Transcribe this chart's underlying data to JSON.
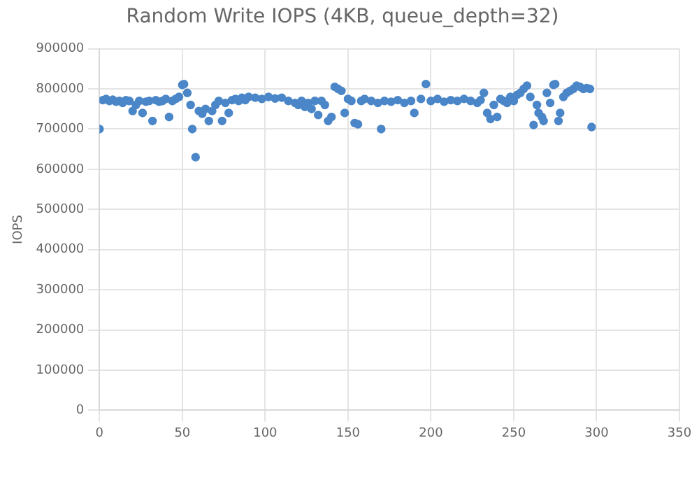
{
  "chart_data": {
    "type": "scatter",
    "title": "Random Write IOPS (4KB, queue_depth=32)",
    "ylabel": "IOPS",
    "series": [
      {
        "color": "#4a86c8",
        "x": [
          0,
          2,
          4,
          6,
          8,
          10,
          12,
          14,
          16,
          18,
          20,
          22,
          24,
          26,
          28,
          30,
          32,
          34,
          36,
          38,
          40,
          42,
          44,
          46,
          48,
          50,
          51,
          53,
          55,
          56,
          58,
          60,
          62,
          64,
          66,
          68,
          70,
          72,
          74,
          76,
          78,
          80,
          82,
          84,
          86,
          88,
          90,
          94,
          98,
          102,
          106,
          110,
          114,
          118,
          120,
          122,
          124,
          126,
          128,
          130,
          132,
          134,
          136,
          138,
          140,
          142,
          144,
          146,
          148,
          150,
          152,
          154,
          156,
          158,
          160,
          164,
          168,
          170,
          172,
          176,
          180,
          184,
          188,
          190,
          194,
          197,
          200,
          204,
          208,
          212,
          216,
          220,
          224,
          228,
          230,
          232,
          234,
          236,
          238,
          240,
          242,
          244,
          246,
          248,
          250,
          252,
          254,
          256,
          258,
          260,
          262,
          264,
          265,
          267,
          268,
          270,
          272,
          274,
          275,
          277,
          278,
          280,
          282,
          284,
          286,
          288,
          290,
          292,
          294,
          296,
          297
        ],
        "values": [
          700000,
          772000,
          775000,
          770000,
          773000,
          768000,
          770000,
          765000,
          772000,
          770000,
          745000,
          760000,
          770000,
          740000,
          768000,
          770000,
          720000,
          772000,
          768000,
          770000,
          775000,
          730000,
          770000,
          775000,
          780000,
          810000,
          812000,
          790000,
          760000,
          700000,
          630000,
          745000,
          738000,
          750000,
          720000,
          745000,
          760000,
          770000,
          720000,
          765000,
          740000,
          772000,
          775000,
          770000,
          778000,
          772000,
          780000,
          778000,
          775000,
          780000,
          776000,
          778000,
          770000,
          765000,
          760000,
          770000,
          755000,
          765000,
          750000,
          770000,
          735000,
          770000,
          760000,
          720000,
          730000,
          805000,
          800000,
          795000,
          740000,
          775000,
          770000,
          715000,
          712000,
          770000,
          775000,
          770000,
          765000,
          700000,
          770000,
          768000,
          772000,
          765000,
          770000,
          740000,
          775000,
          812000,
          770000,
          775000,
          768000,
          772000,
          770000,
          775000,
          770000,
          765000,
          772000,
          790000,
          740000,
          725000,
          760000,
          730000,
          775000,
          770000,
          765000,
          780000,
          770000,
          785000,
          790000,
          800000,
          808000,
          780000,
          710000,
          760000,
          740000,
          730000,
          720000,
          790000,
          765000,
          810000,
          812000,
          720000,
          740000,
          780000,
          790000,
          795000,
          800000,
          808000,
          805000,
          800000,
          802000,
          800000,
          705000
        ]
      }
    ],
    "xlim": [
      0,
      350
    ],
    "xticks": [
      0,
      50,
      100,
      150,
      200,
      250,
      300,
      350
    ],
    "ylim": [
      0,
      900000
    ],
    "yticks": [
      0,
      100000,
      200000,
      300000,
      400000,
      500000,
      600000,
      700000,
      800000,
      900000
    ],
    "grid": true,
    "legend": false,
    "marker": "circle"
  }
}
